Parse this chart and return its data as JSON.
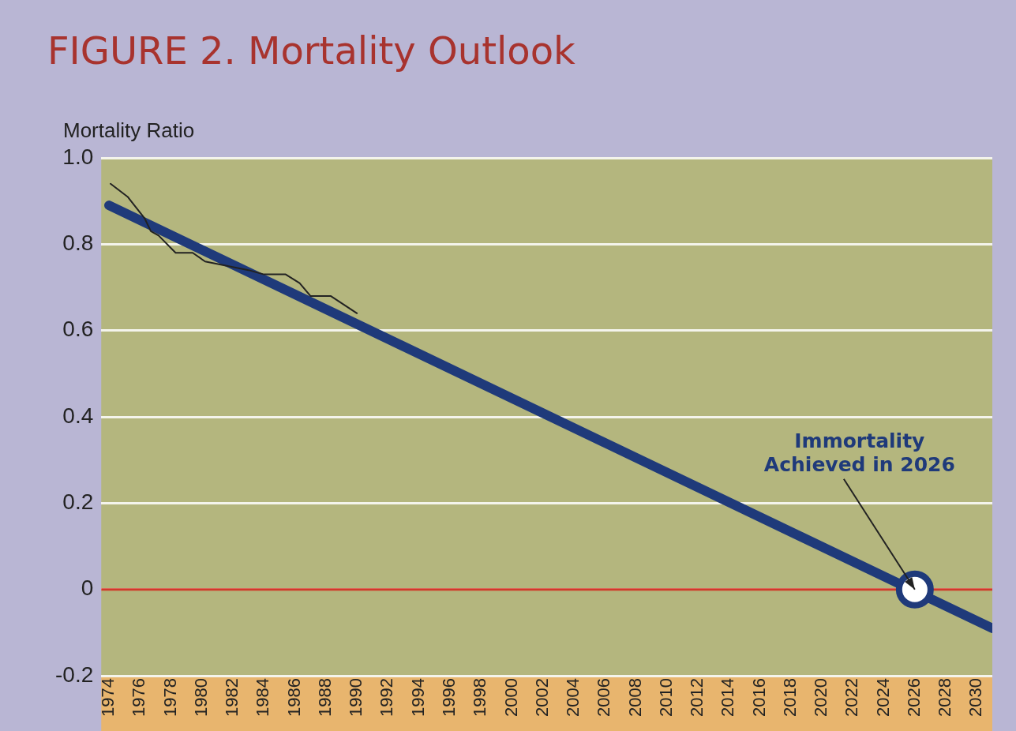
{
  "chart_data": {
    "type": "line",
    "title": "FIGURE 2. Mortality Outlook",
    "ylabel": "Mortality Ratio",
    "xlim": [
      1973.5,
      2031
    ],
    "xticks": [
      1974,
      1976,
      1978,
      1980,
      1982,
      1984,
      1986,
      1988,
      1990,
      1992,
      1994,
      1996,
      1998,
      2000,
      2002,
      2004,
      2006,
      2008,
      2010,
      2012,
      2014,
      2016,
      2018,
      2020,
      2022,
      2024,
      2026,
      2028,
      2030
    ],
    "ylim": [
      -0.2,
      1.0
    ],
    "yticks": [
      {
        "value": -0.2,
        "label": "-0.2"
      },
      {
        "value": 0,
        "label": "0"
      },
      {
        "value": 0.2,
        "label": "0.2"
      },
      {
        "value": 0.4,
        "label": "0.4"
      },
      {
        "value": 0.6,
        "label": "0.6"
      },
      {
        "value": 0.8,
        "label": "0.8"
      },
      {
        "value": 1.0,
        "label": "1.0"
      }
    ],
    "grid": "y",
    "legend": false,
    "line_style": "solid",
    "series": [
      {
        "type": "line",
        "color": "#222222",
        "x": [
          1974.1,
          1975.2,
          1976.3,
          1976.7,
          1977.2,
          1978.3,
          1979.4,
          1980.2,
          1981.6,
          1983,
          1984,
          1985.4,
          1986.3,
          1987,
          1988.3,
          1990
        ],
        "values": [
          0.94,
          0.91,
          0.86,
          0.83,
          0.82,
          0.78,
          0.78,
          0.76,
          0.75,
          0.74,
          0.73,
          0.73,
          0.71,
          0.68,
          0.68,
          0.64
        ]
      },
      {
        "type": "line",
        "color": "#1f3a7a",
        "x": [
          1974,
          2031
        ],
        "values": [
          0.89,
          -0.09
        ]
      },
      {
        "type": "scatter",
        "color": "#1f3a7a",
        "marker": "circle",
        "x": [
          2026
        ],
        "values": [
          0
        ]
      }
    ],
    "ref_lines": [
      {
        "axis": "y",
        "value": 0,
        "color": "#d03a2a"
      }
    ],
    "annotations": [
      {
        "text": "Immortality Achieved in 2026",
        "x": 2026,
        "y": 0
      }
    ]
  }
}
